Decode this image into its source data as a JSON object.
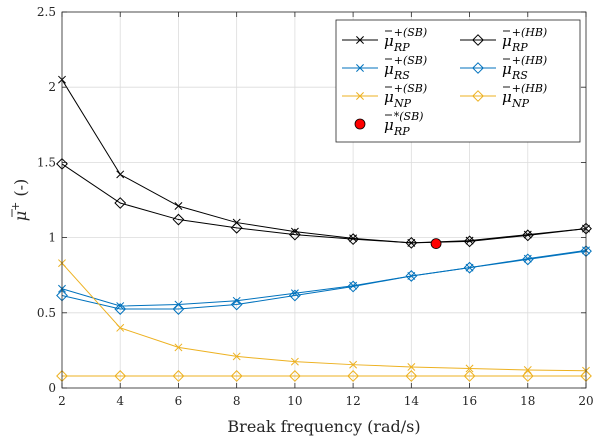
{
  "chart_data": {
    "type": "line",
    "xlabel": "Break frequency (rad/s)",
    "ylabel": {
      "base": "μ",
      "sup": "+",
      "unit": " (-)"
    },
    "x": [
      2,
      4,
      6,
      8,
      10,
      12,
      14,
      16,
      18,
      20
    ],
    "xlim": [
      2,
      20
    ],
    "ylim": [
      0,
      2.5
    ],
    "xticks": [
      "2",
      "4",
      "6",
      "8",
      "10",
      "12",
      "14",
      "16",
      "18",
      "20"
    ],
    "yticks": [
      "0",
      "0.5",
      "1",
      "1.5",
      "2",
      "2.5"
    ],
    "grid": true,
    "legend_position": "top-right",
    "series": [
      {
        "name": "μ̄_RP^+(SB)",
        "base": "μ",
        "sub": "RP",
        "sup": "+(SB)",
        "marker": "x",
        "color": "#000000",
        "values": [
          2.05,
          1.42,
          1.21,
          1.1,
          1.04,
          0.995,
          0.965,
          0.98,
          1.02,
          1.06
        ]
      },
      {
        "name": "μ̄_RP^+(HB)",
        "base": "μ",
        "sub": "RP",
        "sup": "+(HB)",
        "marker": "diamond",
        "color": "#000000",
        "values": [
          1.49,
          1.23,
          1.12,
          1.065,
          1.02,
          0.99,
          0.965,
          0.975,
          1.015,
          1.06
        ]
      },
      {
        "name": "μ̄_RS^+(SB)",
        "base": "μ",
        "sub": "RS",
        "sup": "+(SB)",
        "marker": "x",
        "color": "#0072BD",
        "values": [
          0.66,
          0.545,
          0.555,
          0.58,
          0.63,
          0.68,
          0.745,
          0.8,
          0.86,
          0.915
        ]
      },
      {
        "name": "μ̄_RS^+(HB)",
        "base": "μ",
        "sub": "RS",
        "sup": "+(HB)",
        "marker": "diamond",
        "color": "#0072BD",
        "values": [
          0.615,
          0.525,
          0.525,
          0.555,
          0.615,
          0.675,
          0.745,
          0.8,
          0.855,
          0.91
        ]
      },
      {
        "name": "μ̄_NP^+(SB)",
        "base": "μ",
        "sub": "NP",
        "sup": "+(SB)",
        "marker": "x",
        "color": "#EDB120",
        "values": [
          0.83,
          0.4,
          0.27,
          0.21,
          0.175,
          0.155,
          0.14,
          0.13,
          0.12,
          0.115
        ]
      },
      {
        "name": "μ̄_NP^+(HB)",
        "base": "μ",
        "sub": "NP",
        "sup": "+(HB)",
        "marker": "diamond",
        "color": "#EDB120",
        "values": [
          0.08,
          0.08,
          0.08,
          0.08,
          0.08,
          0.08,
          0.08,
          0.08,
          0.08,
          0.08
        ]
      },
      {
        "name": "μ̄_RP^*(SB)",
        "base": "μ",
        "sub": "RP",
        "sup": "*(SB)",
        "marker": "filled-circle",
        "color": "#FF0000",
        "points": [
          {
            "x": 14.85,
            "y": 0.96
          }
        ]
      }
    ]
  }
}
